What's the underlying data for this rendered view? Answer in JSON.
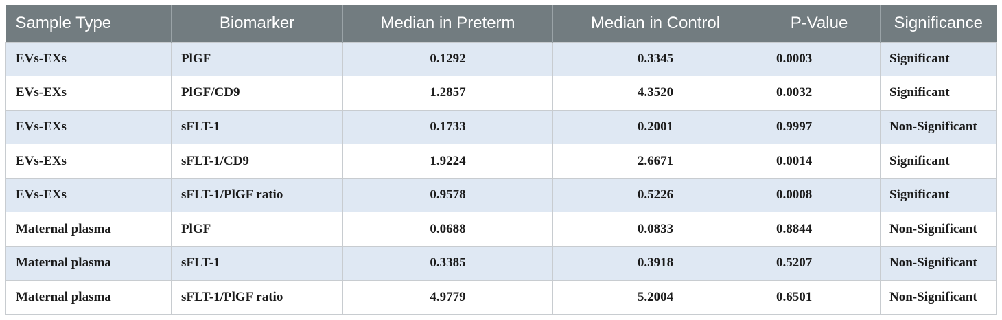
{
  "table": {
    "headers": [
      "Sample Type",
      "Biomarker",
      "Median in Preterm",
      "Median in Control",
      "P-Value",
      "Significance"
    ],
    "rows": [
      [
        "EVs-EXs",
        "PlGF",
        "0.1292",
        "0.3345",
        "0.0003",
        "Significant"
      ],
      [
        "EVs-EXs",
        "PlGF/CD9",
        "1.2857",
        "4.3520",
        "0.0032",
        "Significant"
      ],
      [
        "EVs-EXs",
        "sFLT-1",
        "0.1733",
        "0.2001",
        "0.9997",
        "Non-Significant"
      ],
      [
        "EVs-EXs",
        "sFLT-1/CD9",
        "1.9224",
        "2.6671",
        "0.0014",
        "Significant"
      ],
      [
        "EVs-EXs",
        "sFLT-1/PlGF ratio",
        "0.9578",
        "0.5226",
        "0.0008",
        "Significant"
      ],
      [
        "Maternal plasma",
        "PlGF",
        "0.0688",
        "0.0833",
        "0.8844",
        "Non-Significant"
      ],
      [
        "Maternal plasma",
        "sFLT-1",
        "0.3385",
        "0.3918",
        "0.5207",
        "Non-Significant"
      ],
      [
        "Maternal plasma",
        "sFLT-1/PlGF ratio",
        "4.9779",
        "5.2004",
        "0.6501",
        "Non-Significant"
      ]
    ]
  },
  "colors": {
    "header_bg": "#727c80",
    "header_text": "#ffffff",
    "row_stripe": "#dfe8f3",
    "row_plain": "#ffffff",
    "grid": "#c8ccd0"
  }
}
